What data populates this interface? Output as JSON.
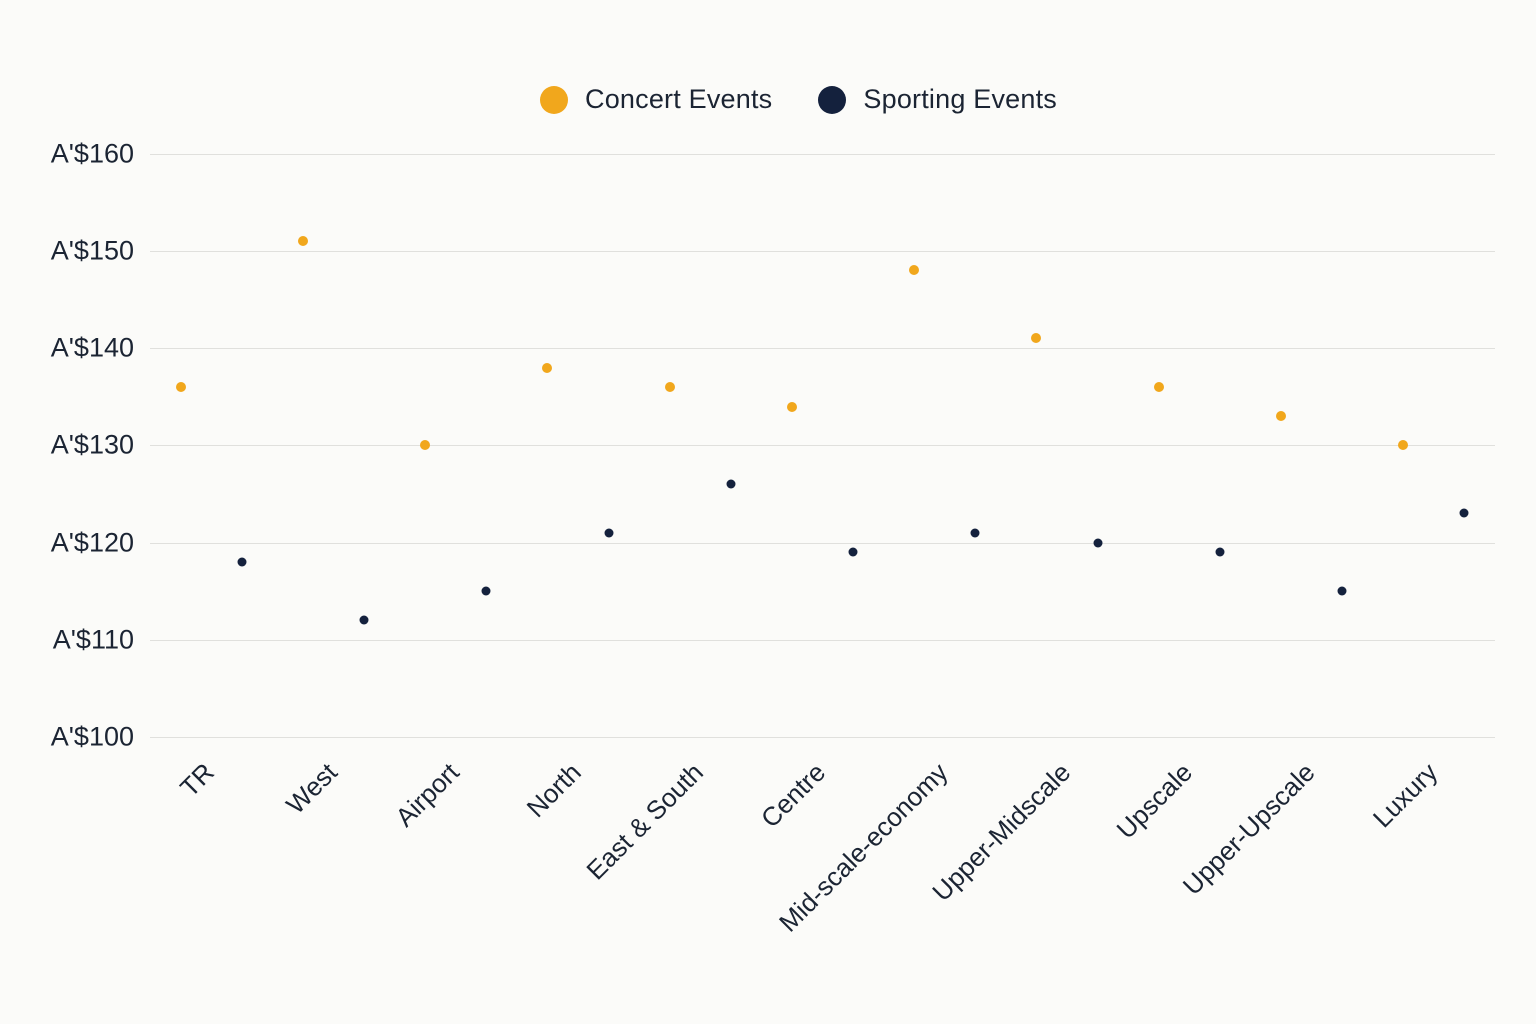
{
  "legend": {
    "items": [
      {
        "label": "Concert Events",
        "color": "#f1a71c"
      },
      {
        "label": "Sporting Events",
        "color": "#14213d"
      }
    ]
  },
  "chart_data": {
    "type": "scatter",
    "title": "",
    "xlabel": "",
    "ylabel": "",
    "currency_prefix": "A'$",
    "categories": [
      "TR",
      "West",
      "Airport",
      "North",
      "East & South",
      "Centre",
      "Mid-scale-economy",
      "Upper-Midscale",
      "Upscale",
      "Upper-Upscale",
      "Luxury"
    ],
    "series": [
      {
        "name": "Concert Events",
        "color": "#f1a71c",
        "values": [
          136,
          151,
          130,
          138,
          136,
          134,
          148,
          141,
          136,
          133,
          130
        ]
      },
      {
        "name": "Sporting Events",
        "color": "#14213d",
        "values": [
          118,
          112,
          115,
          121,
          126,
          119,
          121,
          120,
          119,
          115,
          123
        ]
      }
    ],
    "y_ticks": [
      100,
      110,
      120,
      130,
      140,
      150,
      160
    ],
    "y_tick_labels": [
      "A'$100",
      "A'$110",
      "A'$120",
      "A'$130",
      "A'$140",
      "A'$150",
      "A'$160"
    ],
    "ylim": [
      100,
      160
    ],
    "grid": "horizontal",
    "legend_position": "top-center"
  }
}
